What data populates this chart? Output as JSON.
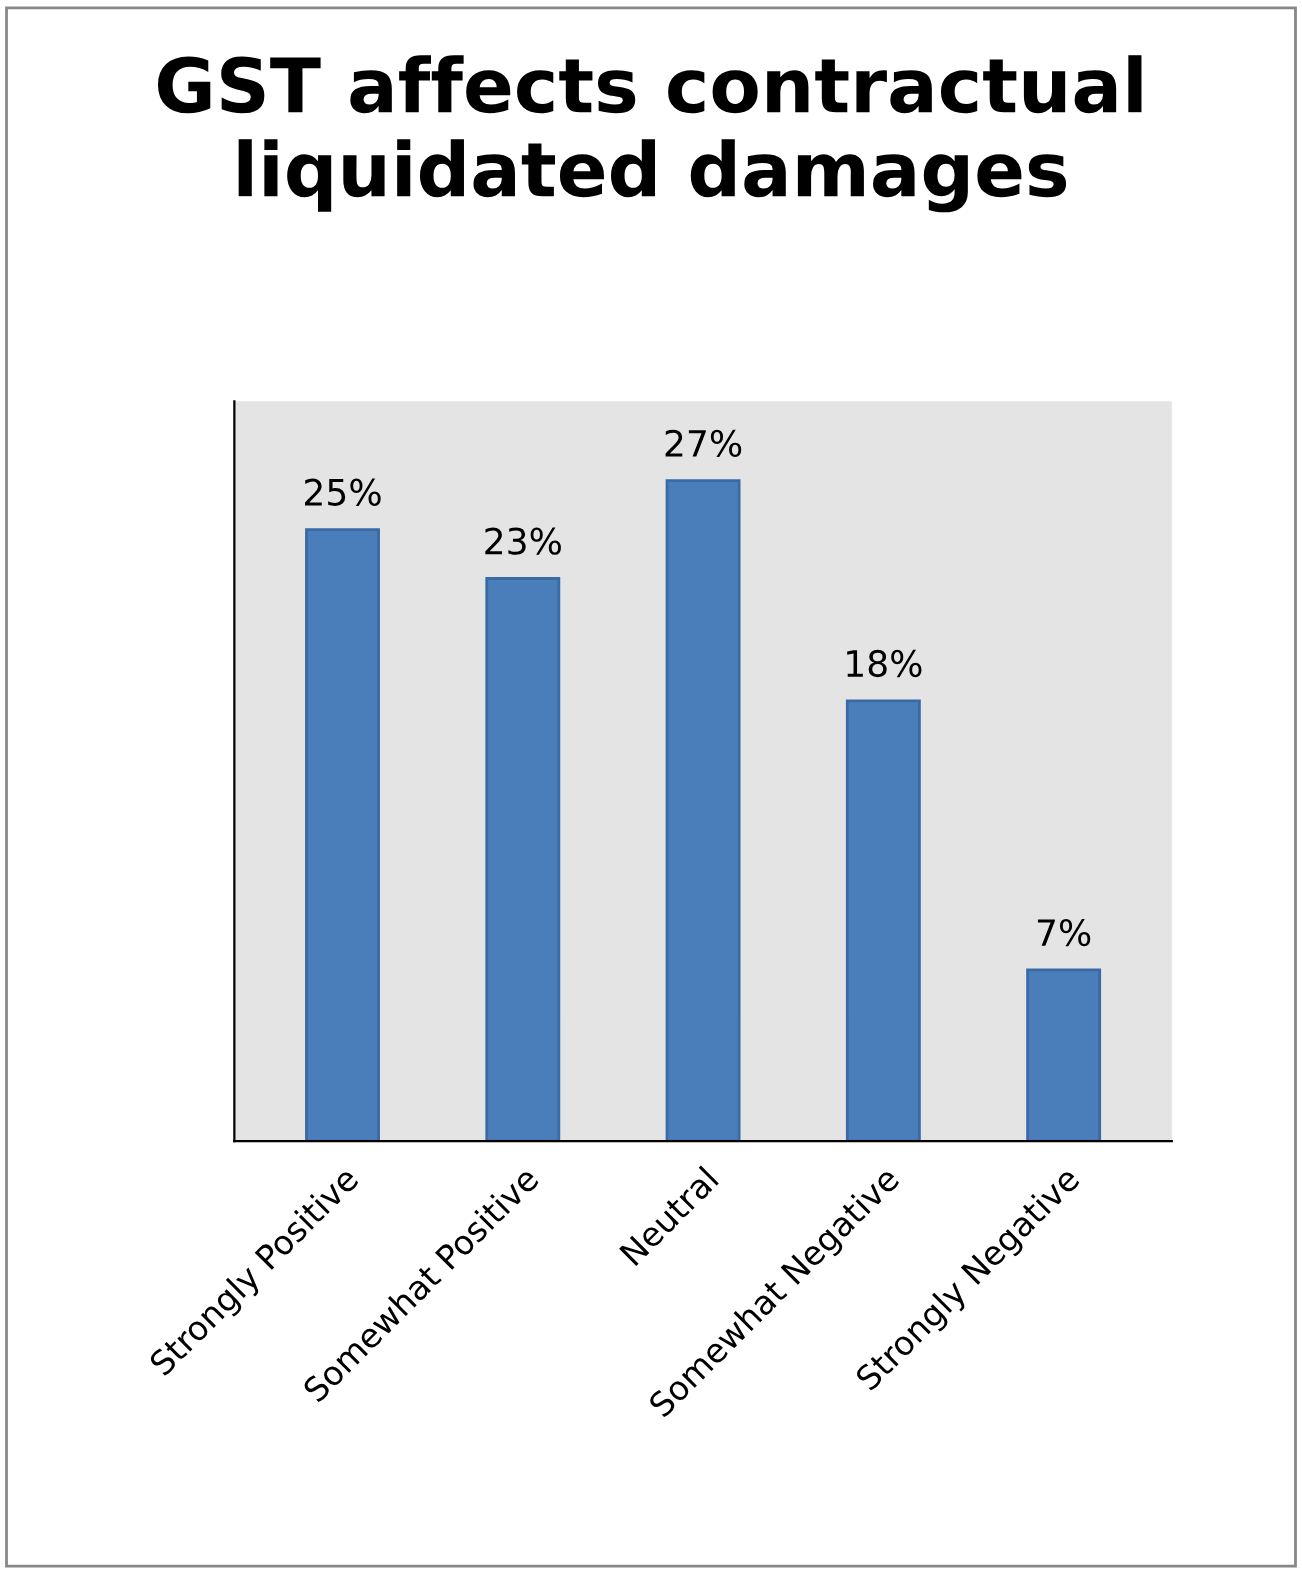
{
  "chart_data": {
    "type": "bar",
    "title": "GST affects contractual liquidated damages",
    "categories": [
      "Strongly Positive",
      "Somewhat Positive",
      "Neutral",
      "Somewhat Negative",
      "Strongly Negative"
    ],
    "values": [
      25,
      23,
      27,
      18,
      7
    ],
    "color": "#4a7ebb",
    "data_labels": true,
    "value_labels": [
      "25%",
      "23%",
      "27%",
      "18%",
      "7%"
    ],
    "grid": false,
    "legend": false
  }
}
